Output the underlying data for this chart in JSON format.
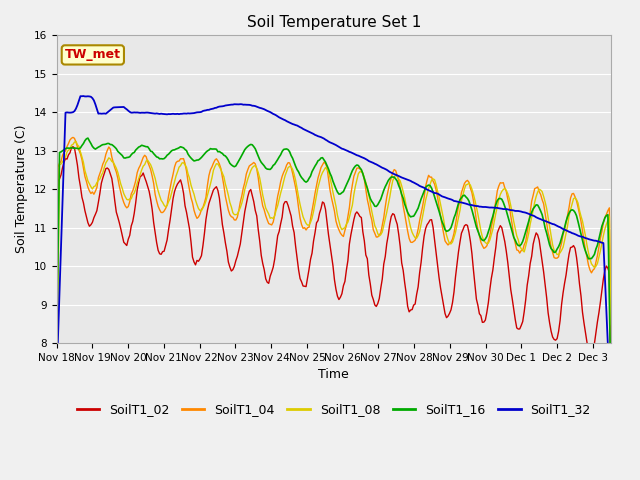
{
  "title": "Soil Temperature Set 1",
  "xlabel": "Time",
  "ylabel": "Soil Temperature (C)",
  "ylim": [
    8.0,
    16.0
  ],
  "yticks": [
    8.0,
    9.0,
    10.0,
    11.0,
    12.0,
    13.0,
    14.0,
    15.0,
    16.0
  ],
  "bg_color": "#e8e8e8",
  "series_colors": {
    "SoilT1_02": "#cc0000",
    "SoilT1_04": "#ff8800",
    "SoilT1_08": "#ddcc00",
    "SoilT1_16": "#00aa00",
    "SoilT1_32": "#0000cc"
  },
  "annotation_text": "TW_met",
  "annotation_color": "#cc0000",
  "annotation_bg": "#ffffcc",
  "annotation_border": "#aa8800",
  "fig_facecolor": "#f0f0f0",
  "tick_fontsize": 7.5,
  "title_fontsize": 11,
  "label_fontsize": 9,
  "legend_fontsize": 9,
  "tick_labels": [
    "Nov 18",
    "Nov 19",
    "Nov 20",
    "Nov 21",
    "Nov 22",
    "Nov 23",
    "Nov 24",
    "Nov 25",
    "Nov 26",
    "Nov 27",
    "Nov 28",
    "Nov 29",
    "Nov 30",
    "Dec 1",
    "Dec 2",
    "Dec 3"
  ],
  "xlim": [
    0,
    15.5
  ]
}
